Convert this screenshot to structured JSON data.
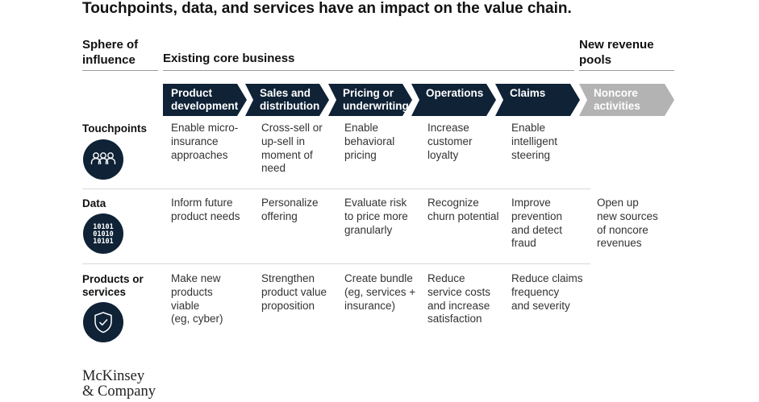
{
  "title": "Touchpoints, data, and services have an impact on the value chain.",
  "sphere_label": "Sphere of\ninfluence",
  "core_label": "Existing core business",
  "new_revenue_label": "New revenue\npools",
  "stages": [
    {
      "line1": "Product",
      "line2": "development",
      "color": "#0f2236"
    },
    {
      "line1": "Sales and",
      "line2": "distribution",
      "color": "#0f2236"
    },
    {
      "line1": "Pricing or",
      "line2": "underwriting",
      "color": "#0f2236"
    },
    {
      "line1": "Operations",
      "line2": "",
      "color": "#0f2236"
    },
    {
      "line1": "Claims",
      "line2": "",
      "color": "#0f2236"
    },
    {
      "line1": "Noncore",
      "line2": "activities",
      "color": "#b3b3b3"
    }
  ],
  "rows": [
    {
      "label": "Touchpoints",
      "icon": "people-icon",
      "cells": [
        "Enable micro-\ninsurance\napproaches",
        "Cross-sell or\nup-sell in\nmoment of\nneed",
        "Enable\nbehavioral\npricing",
        "Increase\ncustomer\nloyalty",
        "Enable\nintelligent\nsteering"
      ]
    },
    {
      "label": "Data",
      "icon": "binary-icon",
      "icon_text": [
        "10101",
        "01010",
        "10101"
      ],
      "cells": [
        "Inform future\nproduct needs",
        "Personalize\noffering",
        "Evaluate risk\nto price more\ngranularly",
        "Recognize\nchurn potential",
        "Improve\nprevention\nand detect\nfraud"
      ]
    },
    {
      "label": "Products or\nservices",
      "icon": "shield-check-icon",
      "cells": [
        "Make new\nproducts\nviable\n(eg, cyber)",
        "Strengthen\nproduct value\nproposition",
        "Create bundle\n(eg, services +\ninsurance)",
        "Reduce\nservice costs\nand increase\nsatisfaction",
        "Reduce claims\nfrequency\nand severity"
      ]
    }
  ],
  "noncore_text": "Open up\nnew sources\nof noncore\nrevenues",
  "logo": "McKinsey\n& Company"
}
